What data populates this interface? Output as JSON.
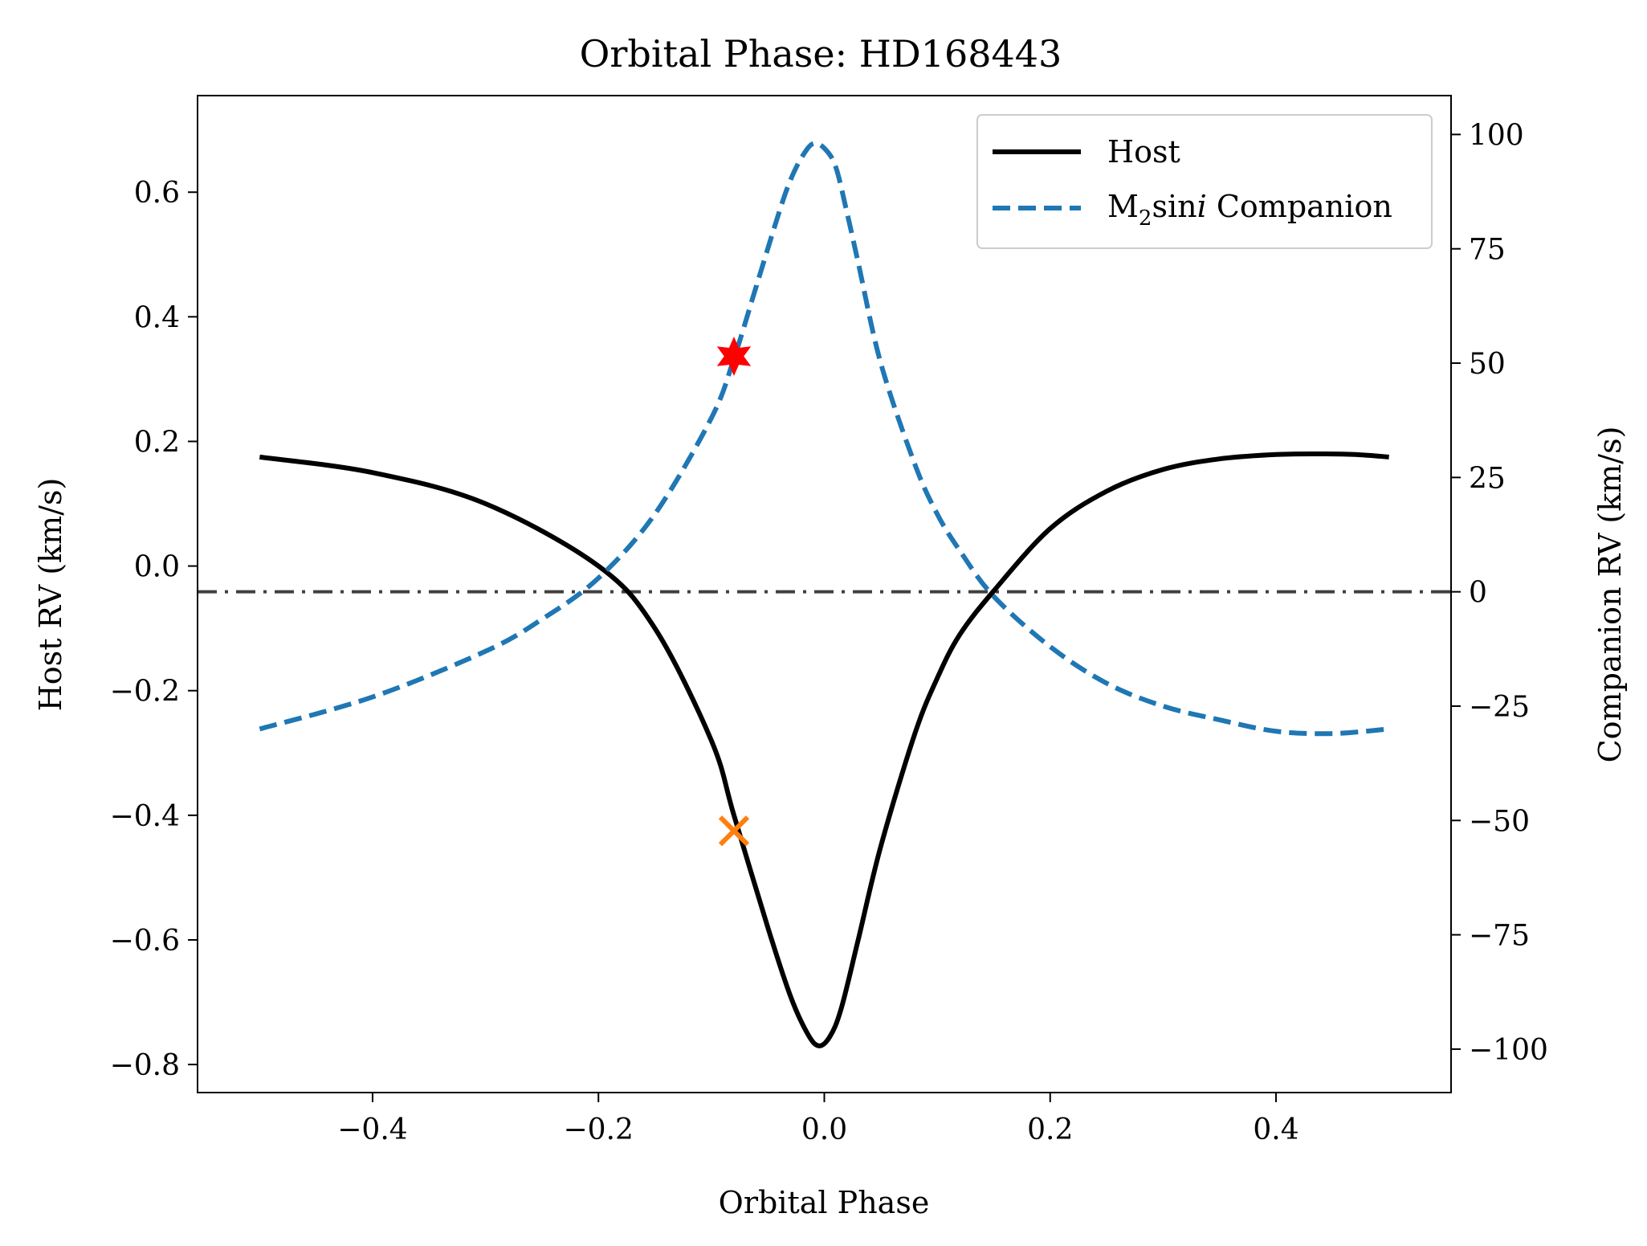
{
  "chart_data": {
    "type": "line",
    "title": "Orbital Phase: HD168443",
    "xlabel": "Orbital Phase",
    "ylabel_left": "Host RV (km/s)",
    "ylabel_right": "Companion RV (km/s)",
    "xlim": [
      -0.555,
      0.555
    ],
    "ylim_left": [
      -0.845,
      0.755
    ],
    "ylim_right": [
      -109.5,
      108.5
    ],
    "x_ticks": [
      -0.4,
      -0.2,
      0.0,
      0.2,
      0.4
    ],
    "x_tick_labels": [
      "−0.4",
      "−0.2",
      "0.0",
      "0.2",
      "0.4"
    ],
    "y_left_ticks": [
      0.6,
      0.4,
      0.2,
      0.0,
      -0.2,
      -0.4,
      -0.6,
      -0.8
    ],
    "y_left_tick_labels": [
      "0.6",
      "0.4",
      "0.2",
      "0.0",
      "−0.2",
      "−0.4",
      "−0.6",
      "−0.8"
    ],
    "y_right_ticks": [
      100,
      75,
      50,
      25,
      0,
      -25,
      -50,
      -75,
      -100
    ],
    "y_right_tick_labels": [
      "100",
      "75",
      "50",
      "25",
      "0",
      "−25",
      "−50",
      "−75",
      "−100"
    ],
    "grid": false,
    "legend_position": "upper-right",
    "series": [
      {
        "name": "Host",
        "axis": "left",
        "style": "solid",
        "color": "#000000",
        "x": [
          -0.5,
          -0.4,
          -0.3,
          -0.2,
          -0.15,
          -0.1,
          -0.08,
          -0.05,
          -0.03,
          -0.015,
          -0.005,
          0.005,
          0.015,
          0.03,
          0.05,
          0.08,
          0.1,
          0.12,
          0.15,
          0.2,
          0.25,
          0.3,
          0.35,
          0.4,
          0.44,
          0.47,
          0.5
        ],
        "y": [
          0.175,
          0.15,
          0.1,
          0.0,
          -0.1,
          -0.28,
          -0.4,
          -0.58,
          -0.69,
          -0.75,
          -0.77,
          -0.755,
          -0.71,
          -0.6,
          -0.45,
          -0.27,
          -0.18,
          -0.11,
          -0.04,
          0.06,
          0.12,
          0.155,
          0.172,
          0.179,
          0.18,
          0.179,
          0.175
        ]
      },
      {
        "name": "M₂sin i Companion",
        "name_parts": {
          "m": "M",
          "sub": "2",
          "sin": "sin",
          "i": "i",
          "rest": " Companion"
        },
        "axis": "right",
        "style": "dashed",
        "color": "#1f77b4",
        "x": [
          -0.5,
          -0.4,
          -0.3,
          -0.25,
          -0.2,
          -0.15,
          -0.1,
          -0.08,
          -0.06,
          -0.04,
          -0.03,
          -0.02,
          -0.01,
          0.0,
          0.01,
          0.02,
          0.03,
          0.05,
          0.08,
          0.1,
          0.12,
          0.15,
          0.2,
          0.25,
          0.3,
          0.35,
          0.4,
          0.45,
          0.5
        ],
        "y": [
          -30,
          -23,
          -13,
          -6,
          3,
          17,
          38,
          51,
          67,
          83,
          90,
          95,
          98,
          97,
          93,
          83,
          72,
          50,
          28,
          17,
          9,
          -1,
          -12,
          -20,
          -25,
          -28,
          -30.5,
          -31,
          -30
        ]
      },
      {
        "name": "",
        "axis": "right",
        "style": "dashdot",
        "color": "#404040",
        "x": [
          -0.555,
          0.555
        ],
        "y": [
          0,
          0
        ]
      }
    ],
    "markers": [
      {
        "shape": "star",
        "color": "#ff0000",
        "x": -0.08,
        "y": 51.5,
        "axis": "right"
      },
      {
        "shape": "x",
        "color": "#ff7f0e",
        "x": -0.08,
        "y": -0.425,
        "axis": "left"
      }
    ]
  }
}
